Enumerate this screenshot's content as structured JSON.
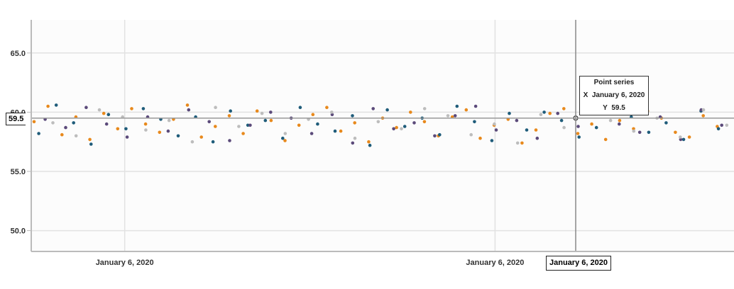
{
  "chart_data": {
    "type": "scatter",
    "title": "",
    "xlabel": "",
    "ylabel": "",
    "ylim": [
      48.3,
      67.8
    ],
    "yticks": [
      "50.0",
      "55.0",
      "60.0",
      "65.0"
    ],
    "ytick_values": [
      50,
      55,
      60,
      65
    ],
    "xticks": [
      "January 6, 2020",
      "January 6, 2020"
    ],
    "xtick_positions": [
      0.133,
      0.66
    ],
    "grid": true,
    "series": [
      {
        "name": "orange",
        "color": "#e8891c",
        "y": [
          59.2,
          60.5,
          58.1,
          59.6,
          57.7,
          59.9,
          58.6,
          60.3,
          59.0,
          58.3,
          59.4,
          60.6,
          57.9,
          58.8,
          59.7,
          58.2,
          60.1,
          59.3,
          57.6,
          58.9,
          59.8,
          60.4,
          58.4,
          59.1,
          57.5,
          59.5,
          58.7,
          60.0,
          59.2,
          58.0,
          59.6,
          60.2,
          57.8,
          58.9,
          59.4,
          57.4,
          58.5,
          59.9,
          60.3,
          58.2,
          59.0,
          57.7,
          59.3,
          58.6,
          60.1,
          59.5,
          58.3,
          57.9,
          59.7,
          58.8
        ]
      },
      {
        "name": "dark blue",
        "color": "#1f5c7a",
        "y": [
          58.2,
          60.6,
          59.1,
          57.3,
          59.8,
          58.6,
          60.3,
          59.4,
          58.0,
          59.6,
          57.5,
          60.1,
          58.9,
          59.3,
          57.8,
          60.4,
          59.0,
          58.4,
          59.7,
          57.2,
          60.2,
          58.8,
          59.5,
          58.1,
          60.5,
          59.2,
          57.6,
          59.9,
          58.5,
          60.0,
          59.3,
          57.9,
          58.7,
          60.3,
          59.6,
          58.3,
          59.1,
          57.7,
          60.1,
          58.6
        ]
      },
      {
        "name": "purple",
        "color": "#5b4a7a",
        "y": [
          59.4,
          58.7,
          60.4,
          59.0,
          57.9,
          59.6,
          58.4,
          60.2,
          59.2,
          57.6,
          58.9,
          60.0,
          59.5,
          58.2,
          59.8,
          57.4,
          60.3,
          58.6,
          59.1,
          58.0,
          59.7,
          60.5,
          58.5,
          59.3,
          57.8,
          59.9,
          58.8,
          60.1,
          59.0,
          58.3,
          59.6,
          57.7,
          60.2,
          58.9
        ]
      },
      {
        "name": "grey",
        "color": "#bdbdbd",
        "y": [
          59.1,
          58.0,
          60.2,
          59.6,
          58.5,
          59.3,
          57.5,
          60.4,
          58.8,
          59.9,
          58.2,
          59.4,
          60.0,
          57.8,
          59.2,
          58.6,
          60.3,
          59.7,
          58.1,
          59.0,
          57.4,
          59.8,
          58.7,
          60.1,
          59.3,
          58.4,
          59.5,
          57.9,
          60.2,
          58.9
        ]
      }
    ],
    "crosshair": {
      "x_label": "January 6, 2020",
      "y_label": "59.5",
      "y": 59.5
    },
    "tooltip": {
      "title": "Point series",
      "x_prefix": "X",
      "x_value": "January 6, 2020",
      "y_prefix": "Y",
      "y_value": "59.5"
    }
  }
}
